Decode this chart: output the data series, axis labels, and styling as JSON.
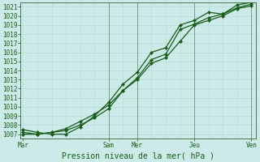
{
  "bg_color": "#cceae8",
  "grid_color_minor": "#b8ddd8",
  "grid_color_major": "#336633",
  "line_color": "#1a5c1a",
  "marker_color": "#1a5c1a",
  "text_color": "#1a5c1a",
  "xlabel": "Pression niveau de la mer( hPa )",
  "ylim": [
    1006.5,
    1021.5
  ],
  "yticks": [
    1007,
    1008,
    1009,
    1010,
    1011,
    1012,
    1013,
    1014,
    1015,
    1016,
    1017,
    1018,
    1019,
    1020,
    1021
  ],
  "xtick_labels": [
    "Mar",
    "Sam",
    "Mer",
    "Jeu",
    "Ven"
  ],
  "xtick_pos": [
    0,
    36,
    48,
    72,
    96
  ],
  "xlim": [
    -1,
    98
  ],
  "total_hours": 97,
  "line1_x": [
    0,
    6,
    12,
    18,
    24,
    30,
    36,
    42,
    48,
    54,
    60,
    66,
    72,
    78,
    84,
    90,
    96
  ],
  "line1_y": [
    1007.2,
    1007.0,
    1007.2,
    1007.6,
    1008.4,
    1009.2,
    1010.2,
    1011.8,
    1013.2,
    1015.2,
    1015.8,
    1018.5,
    1019.1,
    1019.8,
    1020.2,
    1020.9,
    1021.3
  ],
  "line2_x": [
    0,
    6,
    12,
    18,
    24,
    30,
    36,
    42,
    48,
    54,
    60,
    66,
    72,
    78,
    84,
    90,
    96
  ],
  "line2_y": [
    1007.0,
    1007.0,
    1007.2,
    1007.4,
    1008.0,
    1008.8,
    1009.8,
    1011.8,
    1013.0,
    1014.8,
    1015.4,
    1017.2,
    1019.0,
    1019.5,
    1020.0,
    1020.8,
    1021.1
  ],
  "line3_x": [
    0,
    6,
    12,
    18,
    24,
    30,
    36,
    42,
    48,
    54,
    60,
    66,
    72,
    78,
    84,
    90,
    96
  ],
  "line3_y": [
    1007.5,
    1007.2,
    1007.0,
    1007.0,
    1007.8,
    1009.0,
    1010.5,
    1012.5,
    1013.8,
    1016.0,
    1016.5,
    1019.0,
    1019.5,
    1020.4,
    1020.2,
    1021.2,
    1021.5
  ],
  "vlines_x": [
    36,
    48,
    72,
    96
  ],
  "fontsize_ticks": 5.5,
  "fontsize_xlabel": 7
}
